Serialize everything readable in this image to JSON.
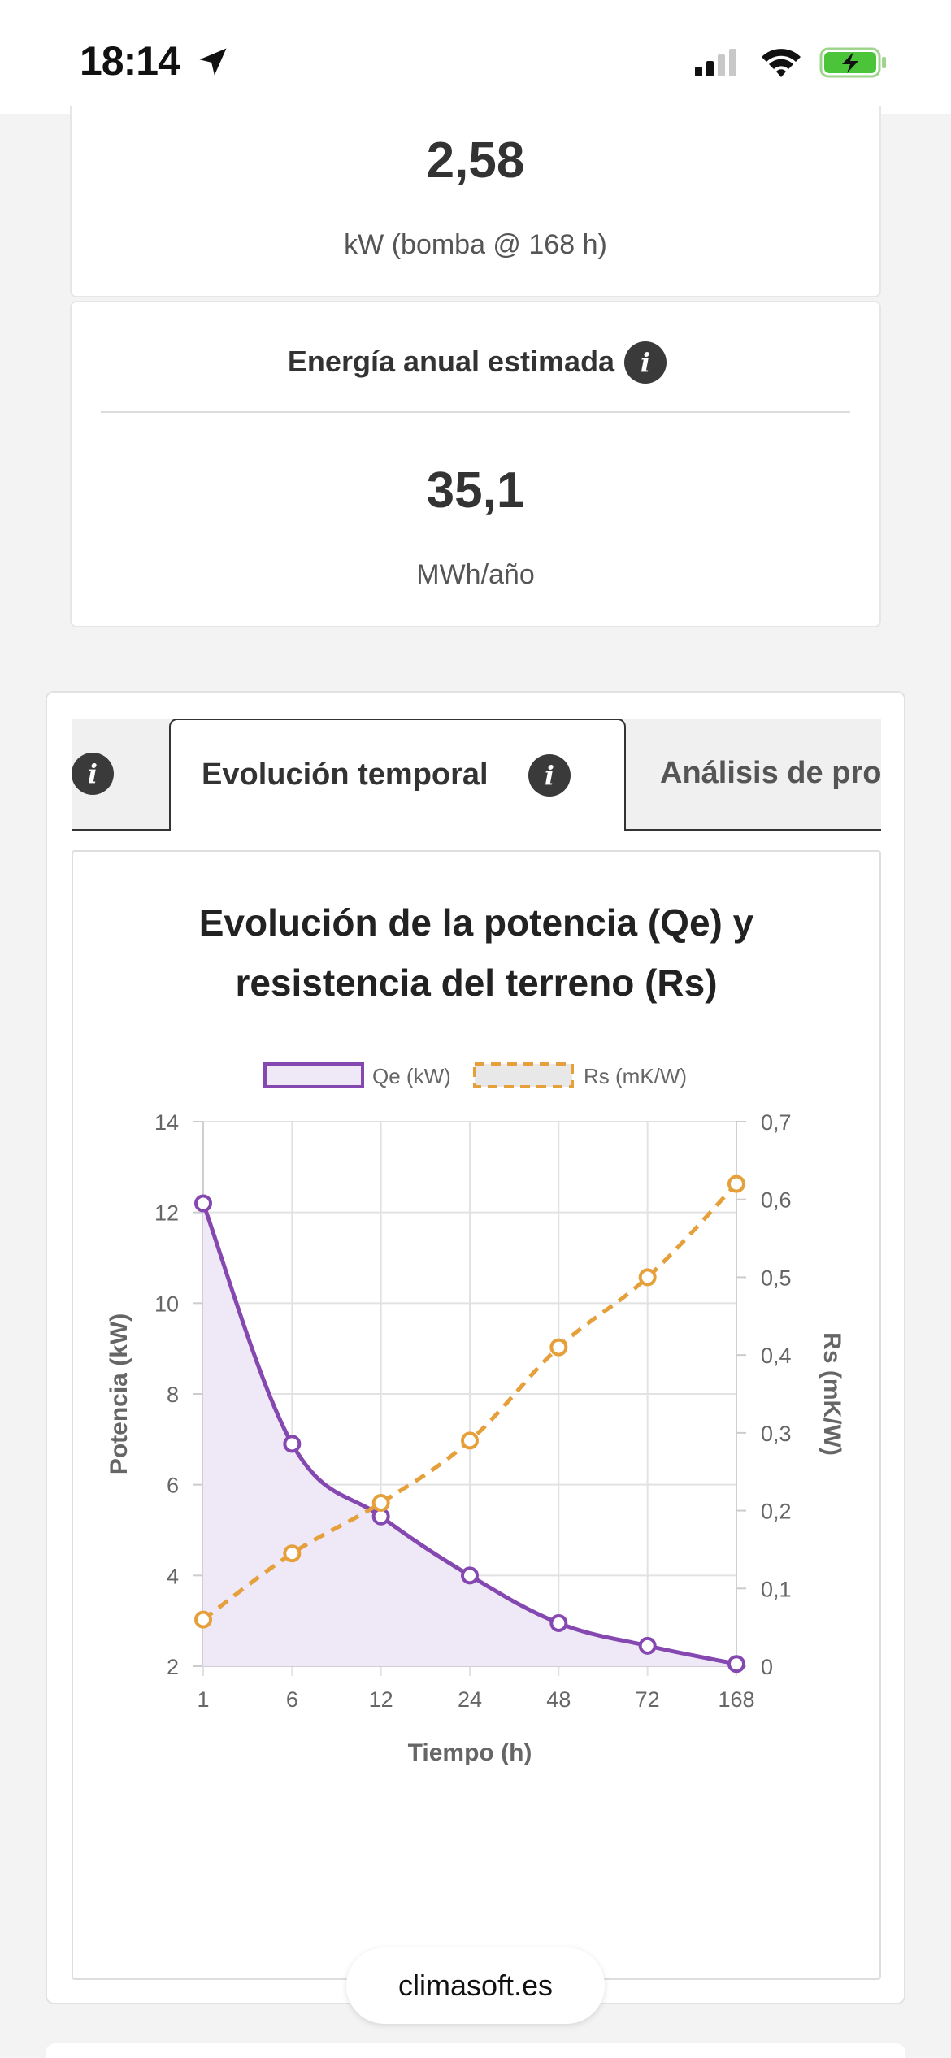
{
  "status_bar": {
    "time": "18:14"
  },
  "kpi_pump": {
    "value": "2,58",
    "unit": "kW (bomba @ 168 h)"
  },
  "kpi_energy": {
    "title": "Energía anual estimada",
    "value": "35,1",
    "unit": "MWh/año"
  },
  "tabs": {
    "prev_info": "i",
    "active_label": "Evolución temporal",
    "active_info": "i",
    "next_label": "Análisis de pro"
  },
  "footer": {
    "site": "climasoft.es"
  },
  "chart_data": {
    "type": "line",
    "title": "Evolución de la potencia (Qe) y resistencia del terreno (Rs)",
    "xlabel": "Tiempo (h)",
    "ylabel_left": "Potencia (kW)",
    "ylabel_right": "Rs (mK/W)",
    "categories": [
      "1",
      "6",
      "12",
      "24",
      "48",
      "72",
      "168"
    ],
    "y_left_ticks": [
      "2",
      "4",
      "6",
      "8",
      "10",
      "12",
      "14"
    ],
    "y_right_ticks": [
      "0",
      "0,1",
      "0,2",
      "0,3",
      "0,4",
      "0,5",
      "0,6",
      "0,7"
    ],
    "ylim_left": [
      2,
      14
    ],
    "ylim_right": [
      0,
      0.7
    ],
    "grid": true,
    "legend_position": "top",
    "series": [
      {
        "name": "Qe (kW)",
        "axis": "left",
        "color": "#8548b0",
        "fill": "#efe8f6",
        "values": [
          12.2,
          6.9,
          5.3,
          4.0,
          2.95,
          2.45,
          2.05
        ]
      },
      {
        "name": "Rs (mK/W)",
        "axis": "right",
        "color": "#e5a03b",
        "dashed": true,
        "values": [
          0.06,
          0.145,
          0.21,
          0.29,
          0.41,
          0.5,
          0.62
        ]
      }
    ]
  }
}
